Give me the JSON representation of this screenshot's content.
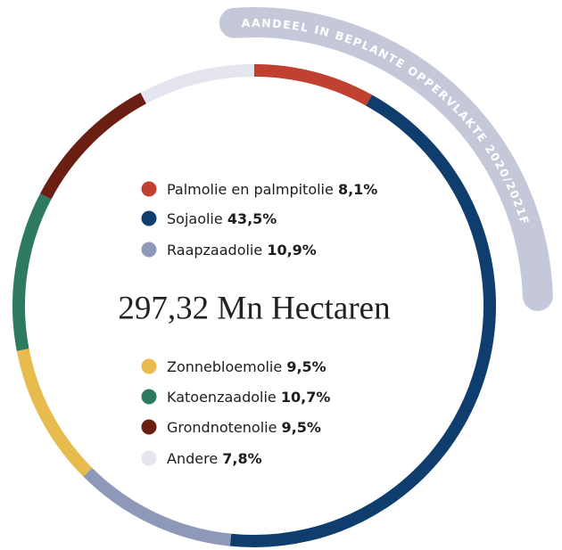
{
  "chart_data": {
    "type": "pie",
    "title": "AANDEEL IN BEPLANTE OPPERVLAKTE 2020/2021F",
    "annotation": "297,32 Mn Hectaren",
    "categories": [
      "Palmolie en palmpitolie",
      "Sojaolie",
      "Raapzaadolie",
      "Zonnebloemolie",
      "Katoenzaadolie",
      "Grondnotenolie",
      "Andere"
    ],
    "values": [
      8.1,
      43.5,
      10.9,
      9.5,
      10.7,
      9.5,
      7.8
    ],
    "value_labels": [
      "8,1%",
      "43,5%",
      "10,9%",
      "9,5%",
      "10,7%",
      "9,5%",
      "7,8%"
    ],
    "colors": [
      "#c0412f",
      "#0f3d6e",
      "#8e98b8",
      "#e8bb4f",
      "#2e7a5e",
      "#6b1e12",
      "#e4e5ee"
    ]
  }
}
